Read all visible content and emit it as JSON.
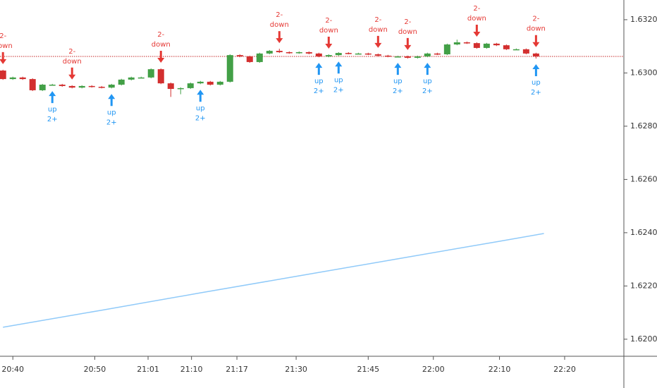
{
  "chart_data": {
    "type": "candlestick",
    "open": [
      1.63009,
      1.62977,
      1.62983,
      1.62977,
      1.62935,
      1.62956,
      1.62956,
      1.62951,
      1.62945,
      1.62951,
      1.62948,
      1.62945,
      1.62956,
      1.62975,
      1.62983,
      1.62983,
      1.63014,
      1.62961,
      1.6294,
      1.62943,
      1.62961,
      1.62967,
      1.62956,
      1.62967,
      1.63067,
      1.63062,
      1.63041,
      1.63073,
      1.63083,
      1.63078,
      1.63075,
      1.63078,
      1.63073,
      1.63062,
      1.63067,
      1.63075,
      1.63073,
      1.63073,
      1.6307,
      1.63065,
      1.63062,
      1.63062,
      1.63057,
      1.63062,
      1.63073,
      1.6307,
      1.63107,
      1.63115,
      1.63112,
      1.63094,
      1.6311,
      1.63104,
      1.63089,
      1.63089,
      1.63073
    ],
    "high": [
      1.63012,
      1.62986,
      1.62986,
      1.6298,
      1.62959,
      1.62959,
      1.62959,
      1.62954,
      1.62954,
      1.62954,
      1.62951,
      1.62959,
      1.62978,
      1.62986,
      1.62986,
      1.63017,
      1.63017,
      1.62964,
      1.62946,
      1.62964,
      1.6297,
      1.6297,
      1.6297,
      1.6307,
      1.6307,
      1.63065,
      1.63076,
      1.63086,
      1.63091,
      1.63081,
      1.63081,
      1.63081,
      1.63076,
      1.6307,
      1.63078,
      1.63078,
      1.63076,
      1.63076,
      1.63073,
      1.63068,
      1.63065,
      1.63065,
      1.63065,
      1.63076,
      1.63076,
      1.6311,
      1.63125,
      1.63118,
      1.63115,
      1.63113,
      1.63113,
      1.63107,
      1.63092,
      1.63092,
      1.63076
    ],
    "low": [
      1.62974,
      1.62974,
      1.62974,
      1.62932,
      1.62932,
      1.62953,
      1.62948,
      1.62942,
      1.62942,
      1.62945,
      1.62942,
      1.62942,
      1.62953,
      1.62972,
      1.6298,
      1.6298,
      1.62958,
      1.6291,
      1.6292,
      1.6294,
      1.62958,
      1.62953,
      1.62953,
      1.62964,
      1.63059,
      1.63038,
      1.63038,
      1.6307,
      1.63075,
      1.63072,
      1.63072,
      1.6307,
      1.63059,
      1.63059,
      1.63064,
      1.6307,
      1.6307,
      1.63067,
      1.63062,
      1.63059,
      1.63059,
      1.63054,
      1.63054,
      1.63059,
      1.63067,
      1.63067,
      1.63104,
      1.63109,
      1.63091,
      1.63091,
      1.63101,
      1.63086,
      1.63086,
      1.6307,
      1.63054
    ],
    "close": [
      1.62977,
      1.62983,
      1.62977,
      1.62935,
      1.62956,
      1.62956,
      1.62951,
      1.62945,
      1.62951,
      1.62948,
      1.62945,
      1.62956,
      1.62975,
      1.62983,
      1.62983,
      1.63014,
      1.62961,
      1.6294,
      1.62943,
      1.62961,
      1.62967,
      1.62956,
      1.62967,
      1.63067,
      1.63062,
      1.63041,
      1.63073,
      1.63083,
      1.63078,
      1.63075,
      1.63078,
      1.63073,
      1.63062,
      1.63067,
      1.63075,
      1.63073,
      1.63073,
      1.6307,
      1.63065,
      1.63062,
      1.63062,
      1.63057,
      1.63062,
      1.63073,
      1.6307,
      1.63107,
      1.63115,
      1.63112,
      1.63094,
      1.6311,
      1.63104,
      1.63089,
      1.63089,
      1.63073,
      1.63062
    ],
    "up_color": "#43a047",
    "down_color": "#d32f2f",
    "series": [
      {
        "x": [
          0,
          10,
          20,
          30,
          40,
          50,
          54.8
        ],
        "values": [
          1.62045,
          1.62109,
          1.62174,
          1.62238,
          1.62302,
          1.62366,
          1.62397
        ],
        "color": "#90caf9"
      }
    ],
    "last_price": 1.63062,
    "last_price_color": "#c62828",
    "signals": {
      "up": {
        "text": [
          "up",
          "2+"
        ],
        "color": "#2196f3",
        "x": [
          5,
          11,
          20,
          32,
          34,
          40,
          43,
          54
        ]
      },
      "down": {
        "text": [
          "2-",
          "down"
        ],
        "color": "#e53935",
        "x": [
          0,
          7,
          16,
          28,
          33,
          38,
          41,
          48,
          54
        ]
      }
    },
    "xlim": [
      -0.3,
      62.9
    ],
    "xticks": [
      {
        "value": 1,
        "label": "20:40"
      },
      {
        "value": 9.3,
        "label": "20:50"
      },
      {
        "value": 14.7,
        "label": "21:01"
      },
      {
        "value": 19.1,
        "label": "21:10"
      },
      {
        "value": 23.7,
        "label": "21:17"
      },
      {
        "value": 29.7,
        "label": "21:30"
      },
      {
        "value": 37,
        "label": "21:45"
      },
      {
        "value": 43.6,
        "label": "22:00"
      },
      {
        "value": 50.3,
        "label": "22:10"
      },
      {
        "value": 56.9,
        "label": "22:20"
      }
    ],
    "ylim": [
      1.61936,
      1.63274
    ],
    "yticks": [
      {
        "value": 1.62,
        "label": "1.62000"
      },
      {
        "value": 1.622,
        "label": "1.62200"
      },
      {
        "value": 1.624,
        "label": "1.62400"
      },
      {
        "value": 1.626,
        "label": "1.62600"
      },
      {
        "value": 1.628,
        "label": "1.62800"
      },
      {
        "value": 1.63,
        "label": "1.63000"
      },
      {
        "value": 1.632,
        "label": "1.63200"
      }
    ]
  }
}
